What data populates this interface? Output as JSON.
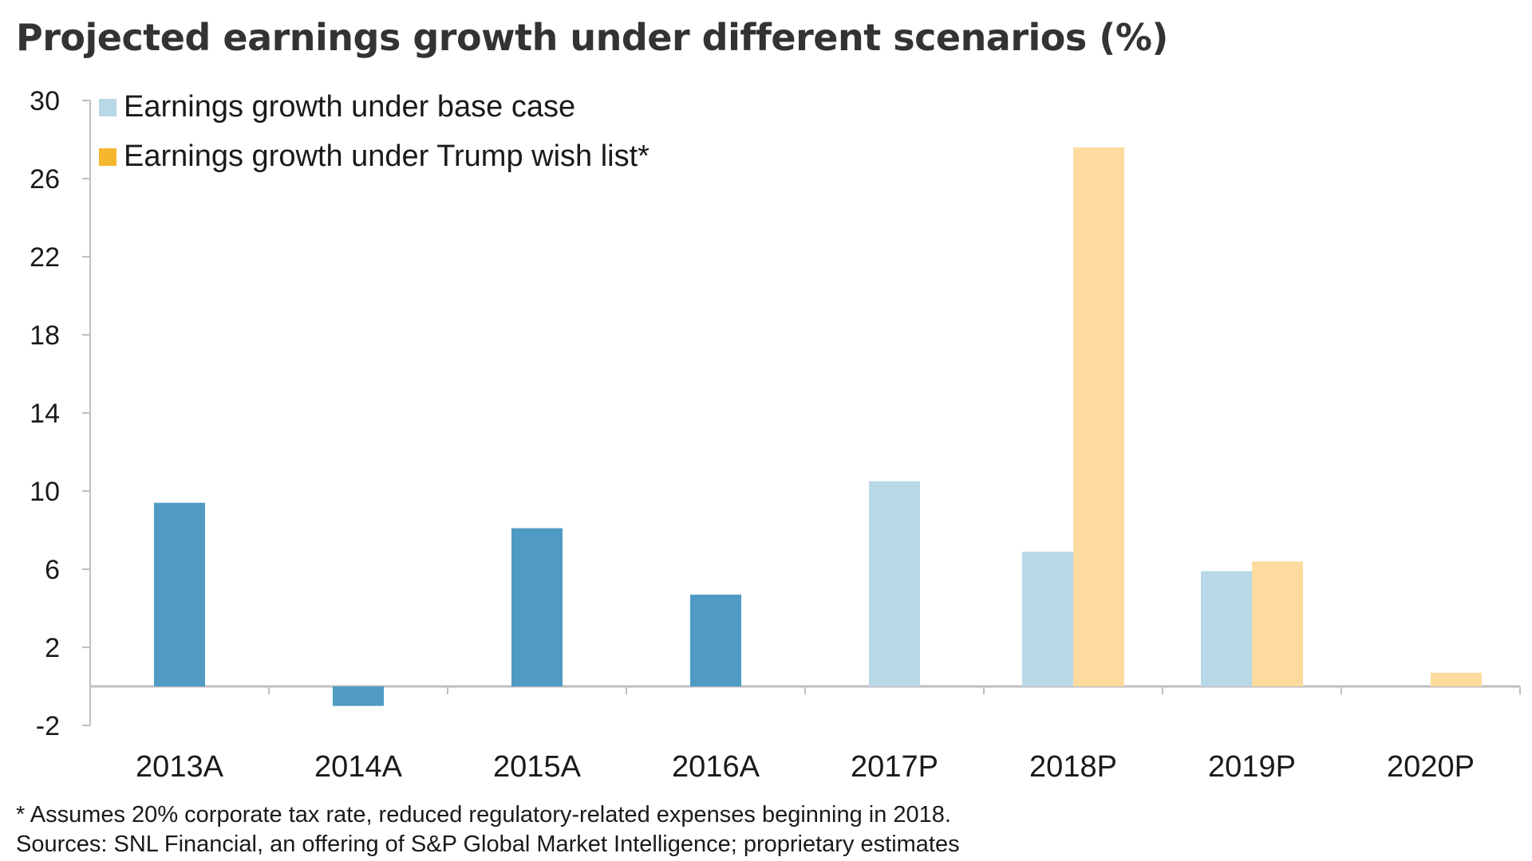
{
  "chart_data": {
    "type": "bar",
    "title": "Projected earnings growth under different scenarios (%)",
    "categories": [
      "2013A",
      "2014A",
      "2015A",
      "2016A",
      "2017P",
      "2018P",
      "2019P",
      "2020P"
    ],
    "series": [
      {
        "name": "Earnings growth under base case",
        "values": [
          9.4,
          -1.0,
          8.1,
          4.7,
          10.5,
          6.9,
          5.9,
          null
        ],
        "actual_flags": [
          true,
          true,
          true,
          true,
          false,
          false,
          false,
          false
        ]
      },
      {
        "name": "Earnings growth under Trump wish list*",
        "values": [
          null,
          null,
          null,
          null,
          null,
          27.6,
          6.4,
          0.7
        ]
      }
    ],
    "yticks": [
      30,
      26,
      22,
      18,
      14,
      10,
      6,
      2,
      -2
    ],
    "ylim": [
      -2,
      30
    ],
    "legend_position": "top-left",
    "grid": false,
    "colors": {
      "actual": "#4f9bc4",
      "base_projected": "#b8d7e7",
      "trump": "#fddb9f",
      "legend_trump": "#f5b72e",
      "axis": "#bfbfbf"
    }
  },
  "footnotes": {
    "note": "* Assumes 20% corporate tax rate, reduced regulatory-related expenses beginning in 2018.",
    "sources": "Sources: SNL Financial, an offering of S&P Global Market Intelligence; proprietary estimates"
  }
}
